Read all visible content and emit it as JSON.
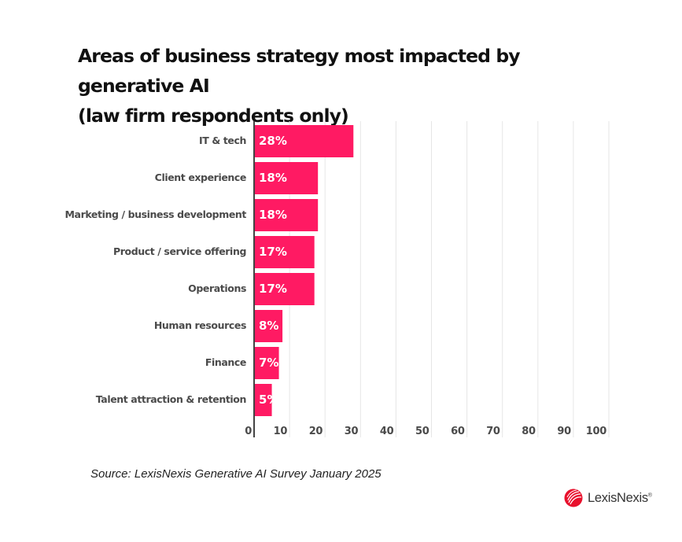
{
  "chart_data": {
    "type": "bar",
    "orientation": "horizontal",
    "title": "Areas of business strategy most impacted by generative AI (law firm respondents only)",
    "title_lines": [
      "Areas of business strategy most impacted by generative AI",
      "(law firm respondents only)"
    ],
    "categories": [
      "IT & tech",
      "Client experience",
      "Marketing / business development",
      "Product / service offering",
      "Operations",
      "Human resources",
      "Finance",
      "Talent attraction & retention"
    ],
    "values": [
      28,
      18,
      18,
      17,
      17,
      8,
      7,
      5
    ],
    "value_labels": [
      "28%",
      "18%",
      "18%",
      "17%",
      "17%",
      "8%",
      "7%",
      "5%"
    ],
    "xlim": [
      0,
      100
    ],
    "xticks": [
      0,
      10,
      20,
      30,
      40,
      50,
      60,
      70,
      80,
      90,
      100
    ],
    "xtick_labels": [
      "0",
      "10",
      "20",
      "30",
      "40",
      "50",
      "60",
      "70",
      "80",
      "90",
      "100"
    ],
    "xlabel": "",
    "ylabel": "",
    "grid": "vertical",
    "bar_color": "#FF1A63",
    "grid_color": "#E6E6E6",
    "axis_color": "#444444"
  },
  "source": "Source: LexisNexis Generative AI Survey January 2025",
  "logo": {
    "text": "LexisNexis",
    "mark": "®",
    "icon": "lexisnexis-knot-icon",
    "color": "#E8112D"
  }
}
